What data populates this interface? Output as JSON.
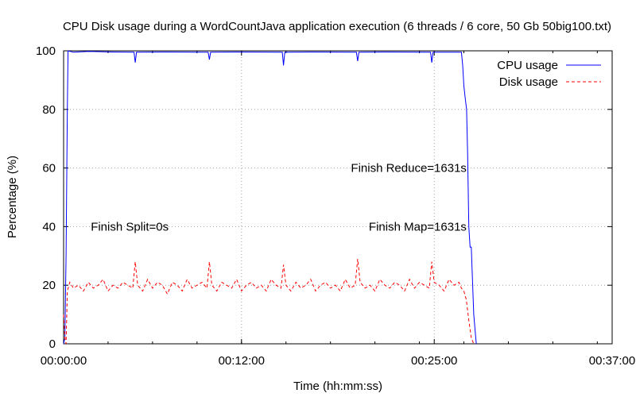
{
  "chart_data": {
    "type": "line",
    "title": "CPU  Disk usage during a WordCountJava application execution (6 threads / 6 core, 50 Gb 50big100.txt)",
    "xlabel": "Time (hh:mm:ss)",
    "ylabel": "Percentage (%)",
    "x_unit": "seconds",
    "xlim": [
      0,
      2220
    ],
    "ylim": [
      0,
      100
    ],
    "x_ticks": [
      {
        "value": 0,
        "label": "00:00:00"
      },
      {
        "value": 720,
        "label": "00:12:00"
      },
      {
        "value": 1500,
        "label": "00:25:00"
      },
      {
        "value": 2220,
        "label": "00:37:00"
      }
    ],
    "y_ticks": [
      {
        "value": 0,
        "label": "0"
      },
      {
        "value": 20,
        "label": "20"
      },
      {
        "value": 40,
        "label": "40"
      },
      {
        "value": 60,
        "label": "60"
      },
      {
        "value": 80,
        "label": "80"
      },
      {
        "value": 100,
        "label": "100"
      }
    ],
    "grid": true,
    "legend_position": "top-right",
    "series": [
      {
        "name": "CPU usage",
        "color": "#0000ff",
        "style": "solid",
        "x": [
          0,
          5,
          10,
          15,
          18,
          40,
          100,
          200,
          285,
          290,
          295,
          400,
          585,
          590,
          595,
          700,
          885,
          890,
          895,
          1000,
          1185,
          1190,
          1195,
          1300,
          1485,
          1490,
          1495,
          1610,
          1615,
          1620,
          1625,
          1628,
          1631,
          1635,
          1640,
          1645,
          1650,
          1660,
          1670
        ],
        "values": [
          0,
          2,
          30,
          80,
          100,
          99.5,
          99.8,
          99.6,
          99.5,
          96,
          99.5,
          99.6,
          99.5,
          97,
          99.5,
          99.6,
          99.5,
          95,
          99.5,
          99.6,
          99.5,
          96.5,
          99.5,
          99.6,
          99.5,
          96,
          99.5,
          99.5,
          95,
          88,
          84,
          82,
          80,
          65,
          40,
          33,
          33,
          10,
          0
        ]
      },
      {
        "name": "Disk usage",
        "color": "#ff0000",
        "style": "dashed",
        "x": [
          0,
          5,
          10,
          15,
          25,
          40,
          60,
          80,
          100,
          120,
          140,
          160,
          180,
          200,
          220,
          240,
          260,
          280,
          290,
          300,
          320,
          340,
          360,
          380,
          400,
          420,
          440,
          460,
          480,
          500,
          520,
          540,
          560,
          580,
          590,
          600,
          620,
          640,
          660,
          680,
          700,
          720,
          740,
          760,
          780,
          800,
          820,
          840,
          860,
          880,
          890,
          900,
          920,
          940,
          960,
          980,
          1000,
          1020,
          1040,
          1060,
          1080,
          1100,
          1120,
          1140,
          1160,
          1180,
          1190,
          1200,
          1220,
          1240,
          1260,
          1280,
          1300,
          1320,
          1340,
          1360,
          1380,
          1400,
          1420,
          1440,
          1460,
          1480,
          1490,
          1500,
          1520,
          1540,
          1560,
          1580,
          1600,
          1610,
          1620,
          1630,
          1640,
          1650,
          1660
        ],
        "values": [
          10,
          2,
          0,
          18,
          21,
          19,
          20,
          18,
          21,
          19,
          20,
          22,
          18,
          20,
          19,
          21,
          20,
          19,
          28,
          20,
          18,
          22,
          19,
          21,
          20,
          17,
          21,
          20,
          18,
          22,
          19,
          20,
          21,
          19,
          28,
          20,
          18,
          21,
          20,
          19,
          22,
          18,
          20,
          21,
          19,
          20,
          18,
          22,
          20,
          19,
          27,
          20,
          18,
          21,
          19,
          20,
          22,
          18,
          20,
          21,
          19,
          20,
          18,
          22,
          19,
          20,
          29,
          21,
          19,
          20,
          18,
          22,
          20,
          19,
          21,
          20,
          18,
          22,
          19,
          21,
          20,
          19,
          28,
          21,
          20,
          18,
          22,
          20,
          21,
          19,
          18,
          15,
          8,
          2,
          0
        ]
      }
    ],
    "annotations": [
      {
        "text": "Finish Split=0s",
        "x": 110,
        "y": 40
      },
      {
        "text": "Finish Map=1631s",
        "x": 1631,
        "y": 40
      },
      {
        "text": "Finish Reduce=1631s",
        "x": 1631,
        "y": 60
      }
    ]
  }
}
